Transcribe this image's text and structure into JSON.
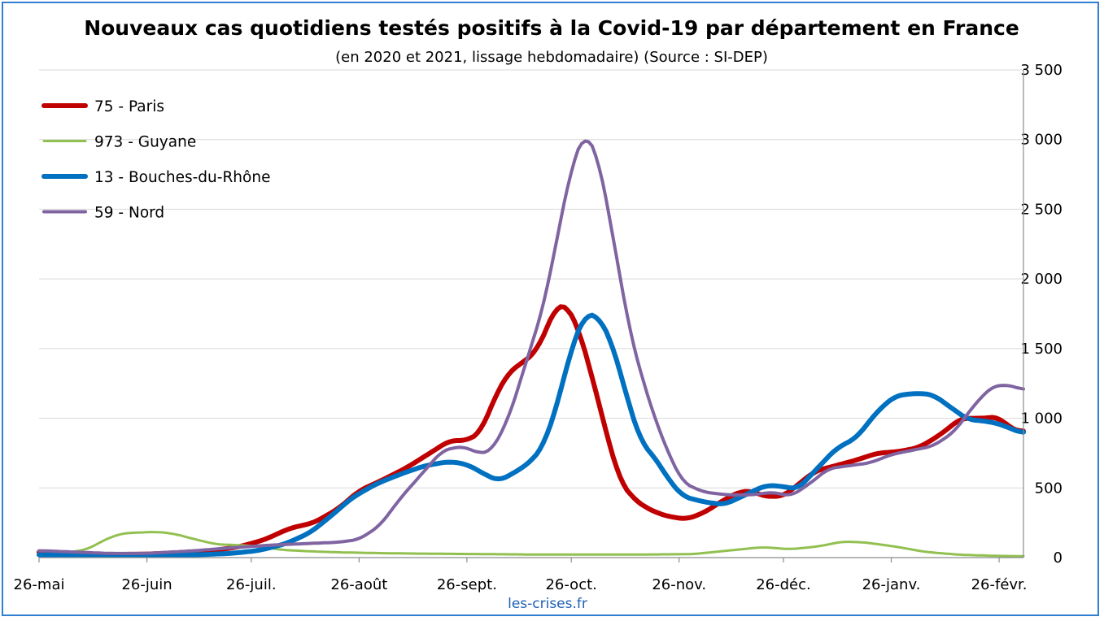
{
  "chart_data": {
    "type": "line",
    "title": "Nouveaux cas quotidiens testés positifs à la Covid-19 par département en France",
    "subtitle": "(en 2020 et 2021, lissage hebdomadaire) (Source : SI-DEP)",
    "source": "les-crises.fr",
    "x_domain": [
      "2020-05-26",
      "2021-03-05"
    ],
    "x_ticks": [
      {
        "date": "2020-05-26",
        "label": "26-mai"
      },
      {
        "date": "2020-06-26",
        "label": "26-juin"
      },
      {
        "date": "2020-07-26",
        "label": "26-juil."
      },
      {
        "date": "2020-08-26",
        "label": "26-août"
      },
      {
        "date": "2020-09-26",
        "label": "26-sept."
      },
      {
        "date": "2020-10-26",
        "label": "26-oct."
      },
      {
        "date": "2020-11-26",
        "label": "26-nov."
      },
      {
        "date": "2020-12-26",
        "label": "26-déc."
      },
      {
        "date": "2021-01-26",
        "label": "26-janv."
      },
      {
        "date": "2021-02-26",
        "label": "26-févr."
      }
    ],
    "y_axis": {
      "position": "right",
      "min": 0,
      "max": 3500,
      "step": 500,
      "tick_labels": [
        "0",
        "500",
        "1 000",
        "1 500",
        "2 000",
        "2 500",
        "3 000",
        "3 500"
      ]
    },
    "grid": "horizontal",
    "legend": "top-left",
    "series": [
      {
        "name": "75 - Paris",
        "color": "#c00000",
        "width": 6,
        "points": [
          [
            "2020-05-26",
            40
          ],
          [
            "2020-06-05",
            30
          ],
          [
            "2020-06-15",
            22
          ],
          [
            "2020-06-26",
            25
          ],
          [
            "2020-07-05",
            35
          ],
          [
            "2020-07-15",
            50
          ],
          [
            "2020-07-23",
            80
          ],
          [
            "2020-07-30",
            130
          ],
          [
            "2020-08-06",
            210
          ],
          [
            "2020-08-13",
            250
          ],
          [
            "2020-08-20",
            350
          ],
          [
            "2020-08-26",
            480
          ],
          [
            "2020-09-02",
            560
          ],
          [
            "2020-09-09",
            650
          ],
          [
            "2020-09-16",
            760
          ],
          [
            "2020-09-21",
            840
          ],
          [
            "2020-09-26",
            840
          ],
          [
            "2020-09-30",
            900
          ],
          [
            "2020-10-04",
            1150
          ],
          [
            "2020-10-08",
            1330
          ],
          [
            "2020-10-12",
            1400
          ],
          [
            "2020-10-16",
            1480
          ],
          [
            "2020-10-19",
            1650
          ],
          [
            "2020-10-22",
            1820
          ],
          [
            "2020-10-25",
            1800
          ],
          [
            "2020-10-28",
            1650
          ],
          [
            "2020-11-01",
            1300
          ],
          [
            "2020-11-05",
            900
          ],
          [
            "2020-11-09",
            550
          ],
          [
            "2020-11-13",
            420
          ],
          [
            "2020-11-17",
            350
          ],
          [
            "2020-11-22",
            300
          ],
          [
            "2020-11-28",
            275
          ],
          [
            "2020-12-03",
            320
          ],
          [
            "2020-12-08",
            400
          ],
          [
            "2020-12-13",
            470
          ],
          [
            "2020-12-17",
            480
          ],
          [
            "2020-12-20",
            440
          ],
          [
            "2020-12-26",
            440
          ],
          [
            "2020-12-30",
            520
          ],
          [
            "2021-01-04",
            620
          ],
          [
            "2021-01-10",
            660
          ],
          [
            "2021-01-16",
            700
          ],
          [
            "2021-01-22",
            750
          ],
          [
            "2021-01-28",
            760
          ],
          [
            "2021-02-03",
            790
          ],
          [
            "2021-02-09",
            880
          ],
          [
            "2021-02-15",
            1000
          ],
          [
            "2021-02-21",
            1000
          ],
          [
            "2021-02-26",
            1010
          ],
          [
            "2021-03-01",
            930
          ],
          [
            "2021-03-05",
            900
          ]
        ]
      },
      {
        "name": "973 - Guyane",
        "color": "#92c050",
        "width": 3,
        "points": [
          [
            "2020-05-26",
            15
          ],
          [
            "2020-06-02",
            30
          ],
          [
            "2020-06-09",
            60
          ],
          [
            "2020-06-14",
            130
          ],
          [
            "2020-06-19",
            175
          ],
          [
            "2020-06-24",
            180
          ],
          [
            "2020-06-29",
            185
          ],
          [
            "2020-07-04",
            170
          ],
          [
            "2020-07-10",
            130
          ],
          [
            "2020-07-16",
            95
          ],
          [
            "2020-07-22",
            90
          ],
          [
            "2020-07-28",
            80
          ],
          [
            "2020-08-04",
            55
          ],
          [
            "2020-08-12",
            45
          ],
          [
            "2020-08-20",
            38
          ],
          [
            "2020-09-01",
            32
          ],
          [
            "2020-09-15",
            28
          ],
          [
            "2020-10-01",
            25
          ],
          [
            "2020-10-15",
            22
          ],
          [
            "2020-11-01",
            22
          ],
          [
            "2020-11-15",
            22
          ],
          [
            "2020-11-30",
            25
          ],
          [
            "2020-12-10",
            50
          ],
          [
            "2020-12-20",
            75
          ],
          [
            "2020-12-28",
            60
          ],
          [
            "2021-01-05",
            80
          ],
          [
            "2021-01-12",
            115
          ],
          [
            "2021-01-18",
            110
          ],
          [
            "2021-01-27",
            80
          ],
          [
            "2021-02-05",
            40
          ],
          [
            "2021-02-15",
            20
          ],
          [
            "2021-02-26",
            12
          ],
          [
            "2021-03-05",
            10
          ]
        ]
      },
      {
        "name": "13 - Bouches-du-Rhône",
        "color": "#0070c0",
        "width": 6,
        "points": [
          [
            "2020-05-26",
            20
          ],
          [
            "2020-06-10",
            15
          ],
          [
            "2020-06-26",
            15
          ],
          [
            "2020-07-10",
            20
          ],
          [
            "2020-07-20",
            30
          ],
          [
            "2020-07-28",
            50
          ],
          [
            "2020-08-05",
            100
          ],
          [
            "2020-08-12",
            180
          ],
          [
            "2020-08-18",
            300
          ],
          [
            "2020-08-24",
            430
          ],
          [
            "2020-08-31",
            530
          ],
          [
            "2020-09-07",
            600
          ],
          [
            "2020-09-14",
            660
          ],
          [
            "2020-09-21",
            690
          ],
          [
            "2020-09-26",
            670
          ],
          [
            "2020-10-01",
            600
          ],
          [
            "2020-10-05",
            550
          ],
          [
            "2020-10-09",
            600
          ],
          [
            "2020-10-14",
            680
          ],
          [
            "2020-10-18",
            800
          ],
          [
            "2020-10-22",
            1100
          ],
          [
            "2020-10-26",
            1500
          ],
          [
            "2020-10-30",
            1750
          ],
          [
            "2020-11-03",
            1730
          ],
          [
            "2020-11-07",
            1520
          ],
          [
            "2020-11-11",
            1150
          ],
          [
            "2020-11-15",
            830
          ],
          [
            "2020-11-19",
            720
          ],
          [
            "2020-11-23",
            560
          ],
          [
            "2020-11-27",
            440
          ],
          [
            "2020-12-03",
            400
          ],
          [
            "2020-12-09",
            380
          ],
          [
            "2020-12-15",
            450
          ],
          [
            "2020-12-21",
            520
          ],
          [
            "2020-12-26",
            510
          ],
          [
            "2020-12-30",
            490
          ],
          [
            "2021-01-04",
            620
          ],
          [
            "2021-01-10",
            780
          ],
          [
            "2021-01-16",
            860
          ],
          [
            "2021-01-22",
            1050
          ],
          [
            "2021-01-27",
            1160
          ],
          [
            "2021-02-02",
            1180
          ],
          [
            "2021-02-07",
            1170
          ],
          [
            "2021-02-12",
            1080
          ],
          [
            "2021-02-17",
            990
          ],
          [
            "2021-02-22",
            980
          ],
          [
            "2021-02-26",
            960
          ],
          [
            "2021-03-05",
            890
          ]
        ]
      },
      {
        "name": "59 - Nord",
        "color": "#8064a2",
        "width": 4,
        "points": [
          [
            "2020-05-26",
            50
          ],
          [
            "2020-06-05",
            40
          ],
          [
            "2020-06-15",
            30
          ],
          [
            "2020-06-26",
            30
          ],
          [
            "2020-07-10",
            50
          ],
          [
            "2020-07-20",
            70
          ],
          [
            "2020-08-01",
            90
          ],
          [
            "2020-08-10",
            100
          ],
          [
            "2020-08-20",
            110
          ],
          [
            "2020-08-26",
            130
          ],
          [
            "2020-09-01",
            230
          ],
          [
            "2020-09-07",
            430
          ],
          [
            "2020-09-13",
            600
          ],
          [
            "2020-09-19",
            770
          ],
          [
            "2020-09-25",
            800
          ],
          [
            "2020-09-29",
            750
          ],
          [
            "2020-10-03",
            760
          ],
          [
            "2020-10-08",
            1000
          ],
          [
            "2020-10-13",
            1400
          ],
          [
            "2020-10-18",
            1800
          ],
          [
            "2020-10-22",
            2300
          ],
          [
            "2020-10-26",
            2800
          ],
          [
            "2020-10-30",
            3060
          ],
          [
            "2020-11-03",
            2850
          ],
          [
            "2020-11-07",
            2300
          ],
          [
            "2020-11-12",
            1600
          ],
          [
            "2020-11-17",
            1150
          ],
          [
            "2020-11-22",
            800
          ],
          [
            "2020-11-27",
            540
          ],
          [
            "2020-12-03",
            470
          ],
          [
            "2020-12-10",
            450
          ],
          [
            "2020-12-17",
            450
          ],
          [
            "2020-12-23",
            470
          ],
          [
            "2020-12-28",
            440
          ],
          [
            "2021-01-02",
            520
          ],
          [
            "2021-01-08",
            640
          ],
          [
            "2021-01-14",
            660
          ],
          [
            "2021-01-20",
            680
          ],
          [
            "2021-01-26",
            740
          ],
          [
            "2021-02-01",
            770
          ],
          [
            "2021-02-07",
            800
          ],
          [
            "2021-02-13",
            900
          ],
          [
            "2021-02-19",
            1100
          ],
          [
            "2021-02-24",
            1230
          ],
          [
            "2021-03-01",
            1240
          ],
          [
            "2021-03-05",
            1200
          ]
        ]
      }
    ]
  }
}
